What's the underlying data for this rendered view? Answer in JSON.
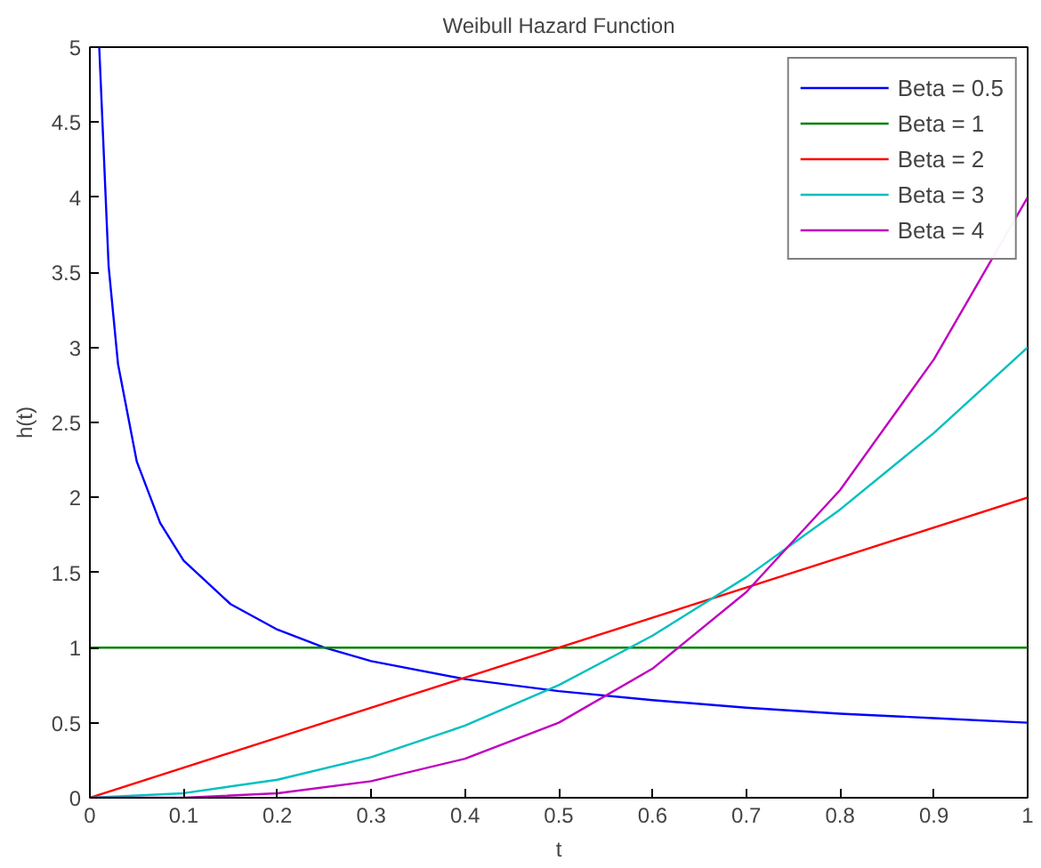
{
  "chart_data": {
    "type": "line",
    "title": "Weibull Hazard Function",
    "xlabel": "t",
    "ylabel": "h(t)",
    "xlim": [
      0,
      1
    ],
    "ylim": [
      0,
      5
    ],
    "xticks": [
      0,
      0.1,
      0.2,
      0.3,
      0.4,
      0.5,
      0.6,
      0.7,
      0.8,
      0.9,
      1
    ],
    "yticks": [
      0,
      0.5,
      1,
      1.5,
      2,
      2.5,
      3,
      3.5,
      4,
      4.5,
      5
    ],
    "grid": false,
    "legend": "top right",
    "series": [
      {
        "name": "Beta = 0.5",
        "color": "#0000ff",
        "x": [
          0.01,
          0.02,
          0.03,
          0.05,
          0.075,
          0.1,
          0.15,
          0.2,
          0.25,
          0.3,
          0.4,
          0.5,
          0.6,
          0.7,
          0.8,
          0.9,
          1.0
        ],
        "values": [
          5,
          3.54,
          2.89,
          2.24,
          1.83,
          1.58,
          1.29,
          1.12,
          1.0,
          0.91,
          0.79,
          0.71,
          0.65,
          0.6,
          0.56,
          0.53,
          0.5
        ]
      },
      {
        "name": "Beta = 1",
        "color": "#008000",
        "x": [
          0,
          1
        ],
        "values": [
          1,
          1
        ]
      },
      {
        "name": "Beta = 2",
        "color": "#ff0000",
        "x": [
          0,
          1
        ],
        "values": [
          0,
          2
        ]
      },
      {
        "name": "Beta = 3",
        "color": "#00bfbf",
        "x": [
          0,
          0.1,
          0.2,
          0.3,
          0.4,
          0.5,
          0.6,
          0.7,
          0.8,
          0.9,
          1
        ],
        "values": [
          0,
          0.03,
          0.12,
          0.27,
          0.48,
          0.75,
          1.08,
          1.47,
          1.92,
          2.43,
          3
        ]
      },
      {
        "name": "Beta = 4",
        "color": "#bf00bf",
        "x": [
          0,
          0.1,
          0.2,
          0.3,
          0.4,
          0.5,
          0.6,
          0.7,
          0.8,
          0.9,
          1
        ],
        "values": [
          0,
          0,
          0.03,
          0.11,
          0.26,
          0.5,
          0.86,
          1.37,
          2.05,
          2.92,
          4
        ]
      }
    ]
  }
}
